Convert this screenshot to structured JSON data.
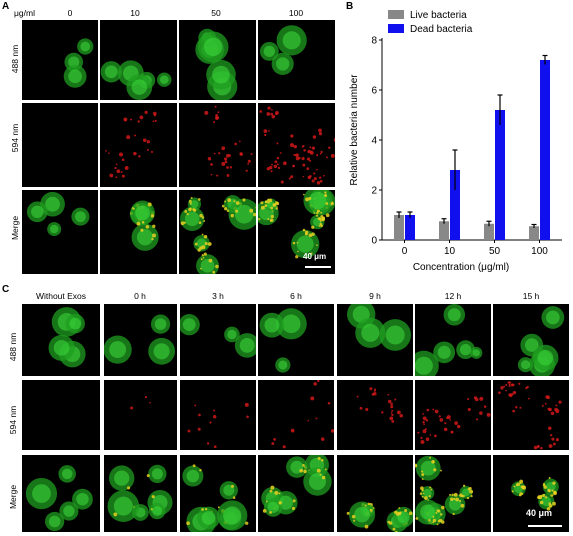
{
  "panels": {
    "a": {
      "letter": "A"
    },
    "b": {
      "letter": "B"
    },
    "c": {
      "letter": "C"
    }
  },
  "panel_a": {
    "unit_label": "μg/ml",
    "columns": [
      "0",
      "10",
      "50",
      "100"
    ],
    "rows": [
      "488 nm",
      "594 nm",
      "Merge"
    ],
    "scale_bar": "40 μm"
  },
  "panel_c": {
    "columns": [
      "Without Exos",
      "0 h",
      "3 h",
      "6 h",
      "9 h",
      "12 h",
      "15 h"
    ],
    "rows": [
      "488 nm",
      "594 nm",
      "Merge"
    ],
    "scale_bar": "40 μm"
  },
  "chart_data": {
    "type": "bar",
    "categories": [
      "0",
      "10",
      "50",
      "100"
    ],
    "series": [
      {
        "name": "Live bacteria",
        "values": [
          1.0,
          0.75,
          0.65,
          0.55
        ],
        "errors": [
          0.12,
          0.1,
          0.1,
          0.07
        ],
        "color": "#888888"
      },
      {
        "name": "Dead bacteria",
        "values": [
          1.0,
          2.8,
          5.2,
          7.2
        ],
        "errors": [
          0.12,
          0.8,
          0.6,
          0.18
        ],
        "color": "#1010ee"
      }
    ],
    "xlabel": "Concentration (μg/ml)",
    "ylabel": "Relative bacteria number",
    "ylim": [
      0,
      8
    ],
    "yticks": [
      "0",
      "2",
      "4",
      "6",
      "8"
    ],
    "legend_position": "top-left"
  }
}
